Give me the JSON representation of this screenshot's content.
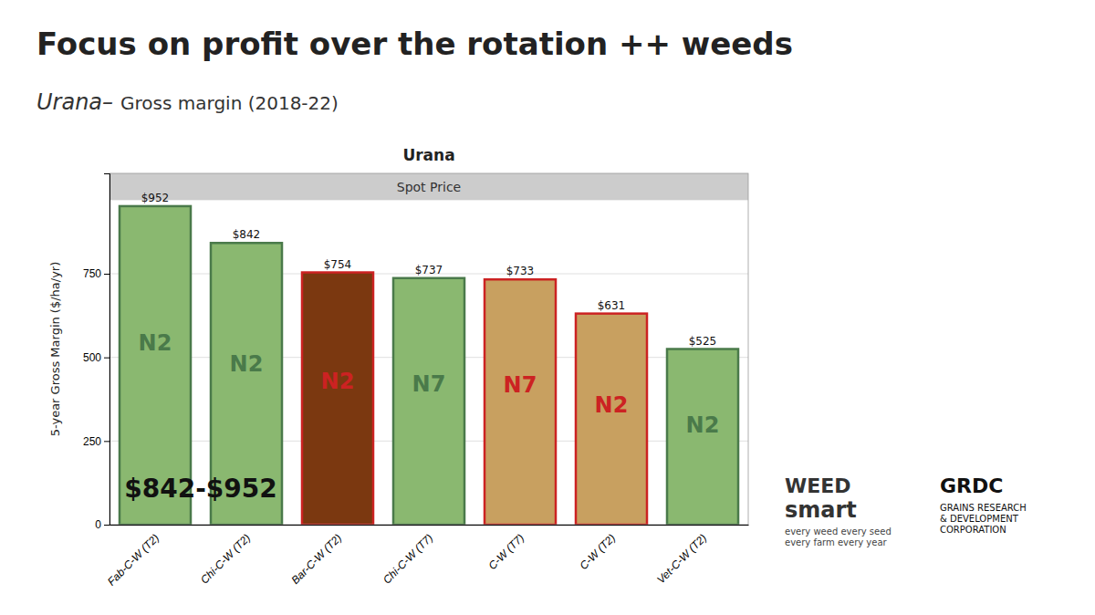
{
  "chart_data": {
    "type": "bar",
    "suptitle": "Focus on profit over the rotation ++ weeds",
    "subtitle": "Urana–",
    "subtitle_detail": "Gross margin (2018-22)",
    "title": "Urana",
    "ylabel": "5-year Gross Margin ($/ha/yr)",
    "categories": [
      "Fab-C-W (T2)",
      "Chi-C-W (T2)",
      "Bar-C-W (T2)",
      "Chi-C-W (T7)",
      "C-W (T7)",
      "C-W (T2)",
      "Vet-C-W (T2)"
    ],
    "values": [
      952,
      842,
      754,
      737,
      733,
      631,
      525
    ],
    "value_labels": [
      "$952",
      "$842",
      "$754",
      "$737",
      "$733",
      "$631",
      "$525"
    ],
    "data_labels": true,
    "colors": [
      "#8ab870",
      "#8ab870",
      "#7b3810",
      "#8ab870",
      "#c8a060",
      "#c8a060",
      "#8ab870"
    ],
    "bar_labels": [
      {
        "text": "N2",
        "color": "#4a7a4a"
      },
      {
        "text": "N2",
        "color": "#4a7a4a"
      },
      {
        "text": "N2",
        "color": "#cc2222"
      },
      {
        "text": "N7",
        "color": "#4a7a4a"
      },
      {
        "text": "N7",
        "color": "#cc2222"
      },
      {
        "text": "N2",
        "color": "#cc2222"
      },
      {
        "text": "N2",
        "color": "#4a7a4a"
      }
    ],
    "annotation": "$842-$952",
    "spot_price": {
      "label": "Spot Price",
      "from": 970
    },
    "ylim": [
      0,
      1050
    ],
    "yticks": [
      0,
      250,
      500,
      750
    ],
    "grid": true,
    "footer": {
      "weedsmart": [
        "WEED",
        "smart"
      ],
      "weedsmart_tagline": [
        "every weed every seed",
        "every farm every year"
      ],
      "grdc": "GRDC",
      "grdc_name": [
        "GRAINS RESEARCH",
        "& DEVELOPMENT",
        "CORPORATION"
      ]
    }
  }
}
